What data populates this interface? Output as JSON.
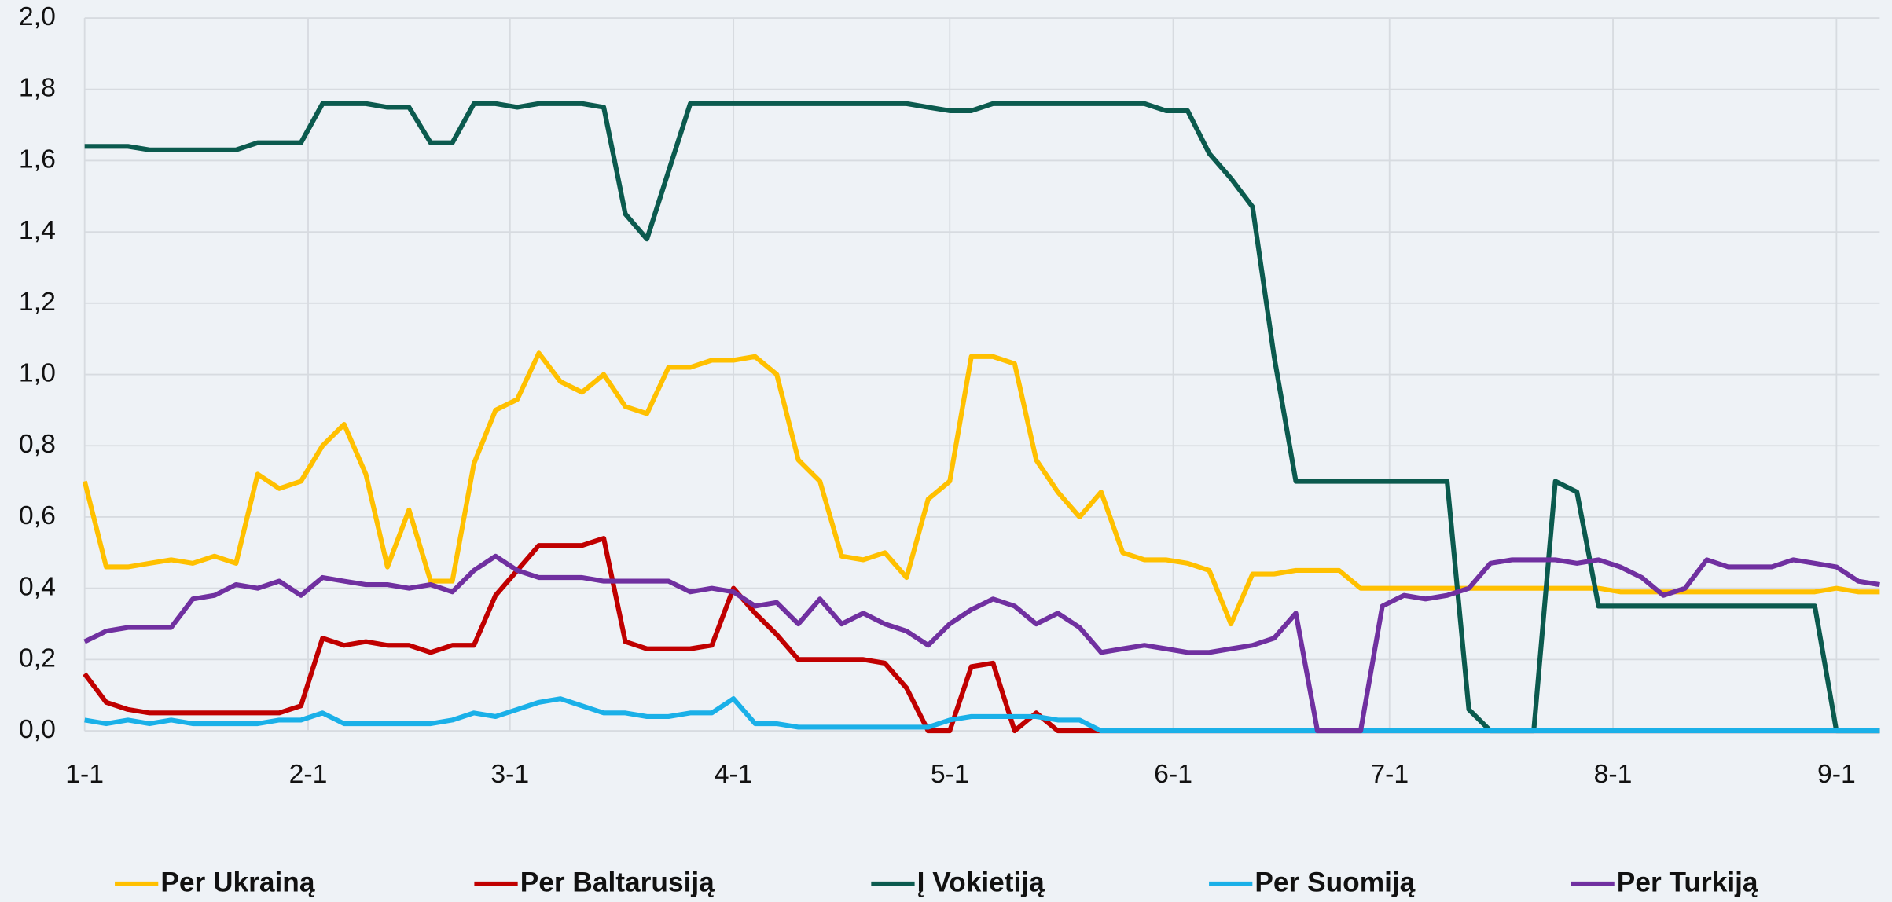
{
  "chart_data": {
    "type": "line",
    "x": [
      0,
      3,
      6,
      9,
      12,
      15,
      18,
      21,
      24,
      27,
      30,
      33,
      36,
      39,
      42,
      45,
      48,
      51,
      54,
      57,
      60,
      63,
      66,
      69,
      72,
      75,
      78,
      81,
      84,
      87,
      90,
      93,
      96,
      99,
      102,
      105,
      108,
      111,
      114,
      117,
      120,
      123,
      126,
      129,
      132,
      135,
      138,
      141,
      144,
      147,
      150,
      153,
      156,
      159,
      162,
      165,
      168,
      171,
      174,
      177,
      180,
      183,
      186,
      189,
      192,
      195,
      198,
      201,
      204,
      207,
      210,
      213,
      216,
      219,
      222,
      225,
      228,
      231,
      234,
      237,
      240,
      243,
      246,
      249
    ],
    "xlim": [
      0,
      249
    ],
    "xticks": [
      {
        "value": 0,
        "label": "1-1"
      },
      {
        "value": 31,
        "label": "2-1"
      },
      {
        "value": 59,
        "label": "3-1"
      },
      {
        "value": 90,
        "label": "4-1"
      },
      {
        "value": 120,
        "label": "5-1"
      },
      {
        "value": 151,
        "label": "6-1"
      },
      {
        "value": 181,
        "label": "7-1"
      },
      {
        "value": 212,
        "label": "8-1"
      },
      {
        "value": 243,
        "label": "9-1"
      }
    ],
    "ylim": [
      0,
      2.0
    ],
    "yticks": [
      {
        "value": 0,
        "label": "0,0"
      },
      {
        "value": 0.2,
        "label": "0,2"
      },
      {
        "value": 0.4,
        "label": "0,4"
      },
      {
        "value": 0.6,
        "label": "0,6"
      },
      {
        "value": 0.8,
        "label": "0,8"
      },
      {
        "value": 1.0,
        "label": "1,0"
      },
      {
        "value": 1.2,
        "label": "1,2"
      },
      {
        "value": 1.4,
        "label": "1,4"
      },
      {
        "value": 1.6,
        "label": "1,6"
      },
      {
        "value": 1.8,
        "label": "1,8"
      },
      {
        "value": 2.0,
        "label": "2,0"
      }
    ],
    "grid": true,
    "legend": "bottom",
    "series": [
      {
        "name": "Per Ukrainą",
        "color": "#ffc000",
        "values": [
          0.7,
          0.46,
          0.46,
          0.47,
          0.48,
          0.47,
          0.49,
          0.47,
          0.72,
          0.68,
          0.7,
          0.8,
          0.86,
          0.72,
          0.46,
          0.62,
          0.42,
          0.42,
          0.75,
          0.9,
          0.93,
          1.06,
          0.98,
          0.95,
          1.0,
          0.91,
          0.89,
          1.02,
          1.02,
          1.04,
          1.04,
          1.05,
          1.0,
          0.76,
          0.7,
          0.49,
          0.48,
          0.5,
          0.43,
          0.65,
          0.7,
          1.05,
          1.05,
          1.03,
          0.76,
          0.67,
          0.6,
          0.67,
          0.5,
          0.48,
          0.48,
          0.47,
          0.45,
          0.3,
          0.44,
          0.44,
          0.45,
          0.45,
          0.45,
          0.4,
          0.4,
          0.4,
          0.4,
          0.4,
          0.4,
          0.4,
          0.4,
          0.4,
          0.4,
          0.4,
          0.4,
          0.39,
          0.39,
          0.39,
          0.39,
          0.39,
          0.39,
          0.39,
          0.39,
          0.39,
          0.39,
          0.4,
          0.39,
          0.39
        ]
      },
      {
        "name": "Per Baltarusiją",
        "color": "#c00000",
        "values": [
          0.16,
          0.08,
          0.06,
          0.05,
          0.05,
          0.05,
          0.05,
          0.05,
          0.05,
          0.05,
          0.07,
          0.26,
          0.24,
          0.25,
          0.24,
          0.24,
          0.22,
          0.24,
          0.24,
          0.38,
          0.45,
          0.52,
          0.52,
          0.52,
          0.54,
          0.25,
          0.23,
          0.23,
          0.23,
          0.24,
          0.4,
          0.33,
          0.27,
          0.2,
          0.2,
          0.2,
          0.2,
          0.19,
          0.12,
          0,
          0,
          0.18,
          0.19,
          0,
          0.05,
          0,
          0,
          0,
          0,
          0,
          0,
          0,
          0,
          0,
          0,
          0,
          0,
          0,
          0,
          0,
          0,
          0,
          0,
          0,
          0,
          0,
          0,
          0,
          0,
          0,
          0,
          0,
          0,
          0,
          0,
          0,
          0,
          0,
          0,
          0,
          0,
          0,
          0,
          0
        ]
      },
      {
        "name": "Į Vokietiją",
        "color": "#0b5a4e",
        "values": [
          1.64,
          1.64,
          1.64,
          1.63,
          1.63,
          1.63,
          1.63,
          1.63,
          1.65,
          1.65,
          1.65,
          1.76,
          1.76,
          1.76,
          1.75,
          1.75,
          1.65,
          1.65,
          1.76,
          1.76,
          1.75,
          1.76,
          1.76,
          1.76,
          1.75,
          1.45,
          1.38,
          1.57,
          1.76,
          1.76,
          1.76,
          1.76,
          1.76,
          1.76,
          1.76,
          1.76,
          1.76,
          1.76,
          1.76,
          1.75,
          1.74,
          1.74,
          1.76,
          1.76,
          1.76,
          1.76,
          1.76,
          1.76,
          1.76,
          1.76,
          1.74,
          1.74,
          1.62,
          1.55,
          1.47,
          1.05,
          0.7,
          0.7,
          0.7,
          0.7,
          0.7,
          0.7,
          0.7,
          0.7,
          0.06,
          0,
          0,
          0,
          0.7,
          0.67,
          0.35,
          0.35,
          0.35,
          0.35,
          0.35,
          0.35,
          0.35,
          0.35,
          0.35,
          0.35,
          0.35,
          0,
          0,
          0
        ]
      },
      {
        "name": "Per Suomiją",
        "color": "#1ab0e8",
        "values": [
          0.03,
          0.02,
          0.03,
          0.02,
          0.03,
          0.02,
          0.02,
          0.02,
          0.02,
          0.03,
          0.03,
          0.05,
          0.02,
          0.02,
          0.02,
          0.02,
          0.02,
          0.03,
          0.05,
          0.04,
          0.06,
          0.08,
          0.09,
          0.07,
          0.05,
          0.05,
          0.04,
          0.04,
          0.05,
          0.05,
          0.09,
          0.02,
          0.02,
          0.01,
          0.01,
          0.01,
          0.01,
          0.01,
          0.01,
          0.01,
          0.03,
          0.04,
          0.04,
          0.04,
          0.04,
          0.03,
          0.03,
          0,
          0,
          0,
          0,
          0,
          0,
          0,
          0,
          0,
          0,
          0,
          0,
          0,
          0,
          0,
          0,
          0,
          0,
          0,
          0,
          0,
          0,
          0,
          0,
          0,
          0,
          0,
          0,
          0,
          0,
          0,
          0,
          0,
          0,
          0,
          0,
          0
        ]
      },
      {
        "name": "Per Turkiją",
        "color": "#7030a0",
        "values": [
          0.25,
          0.28,
          0.29,
          0.29,
          0.29,
          0.37,
          0.38,
          0.41,
          0.4,
          0.42,
          0.38,
          0.43,
          0.42,
          0.41,
          0.41,
          0.4,
          0.41,
          0.39,
          0.45,
          0.49,
          0.45,
          0.43,
          0.43,
          0.43,
          0.42,
          0.42,
          0.42,
          0.42,
          0.39,
          0.4,
          0.39,
          0.35,
          0.36,
          0.3,
          0.37,
          0.3,
          0.33,
          0.3,
          0.28,
          0.24,
          0.3,
          0.34,
          0.37,
          0.35,
          0.3,
          0.33,
          0.29,
          0.22,
          0.23,
          0.24,
          0.23,
          0.22,
          0.22,
          0.23,
          0.24,
          0.26,
          0.33,
          0,
          0,
          0,
          0.35,
          0.38,
          0.37,
          0.38,
          0.4,
          0.47,
          0.48,
          0.48,
          0.48,
          0.47,
          0.48,
          0.46,
          0.43,
          0.38,
          0.4,
          0.48,
          0.46,
          0.46,
          0.46,
          0.48,
          0.47,
          0.46,
          0.42,
          0.41
        ]
      }
    ]
  }
}
